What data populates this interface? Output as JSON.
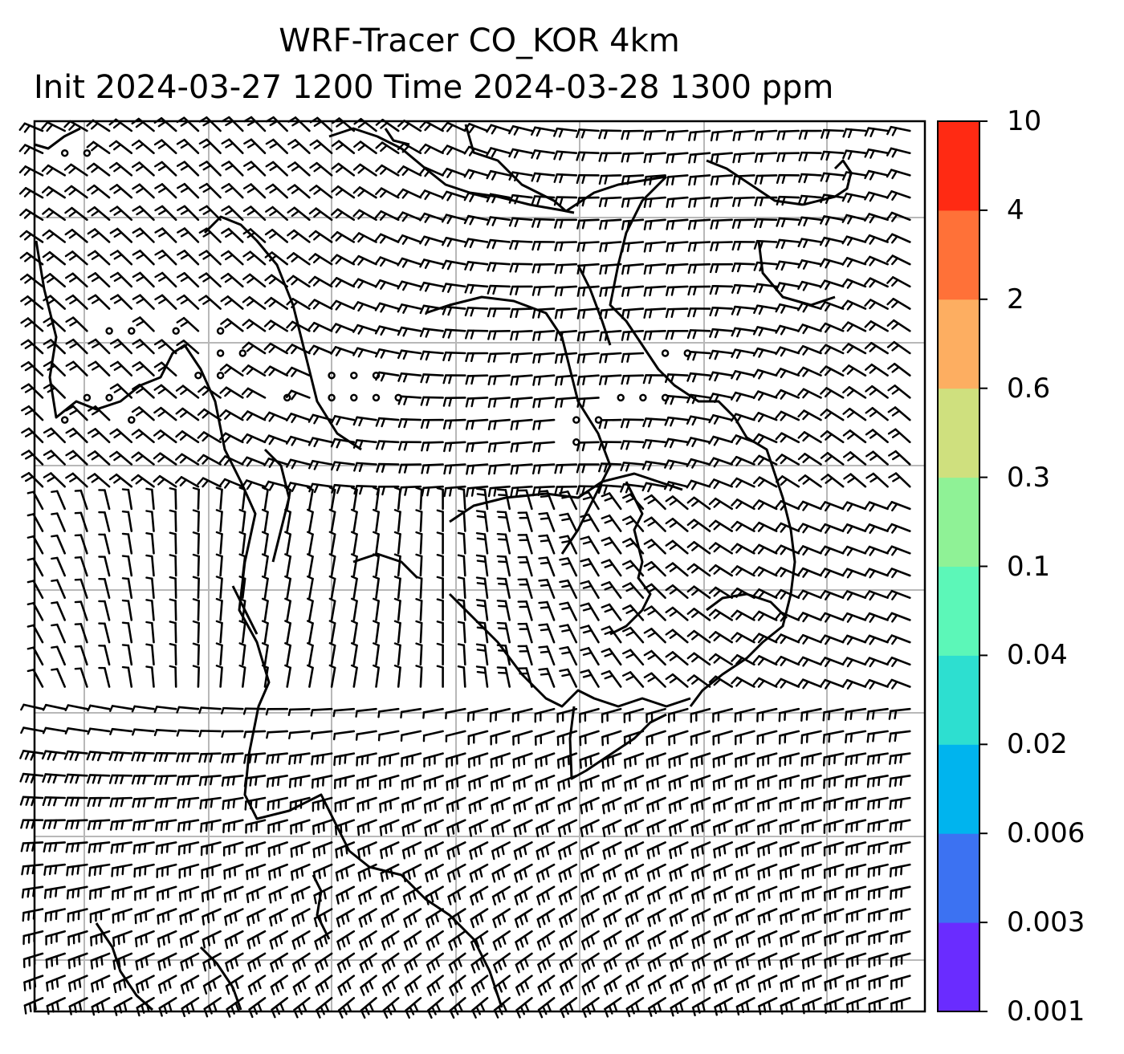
{
  "title": {
    "line1": "WRF-Tracer CO_KOR 4km",
    "line2": "Init 2024-03-27 1200 Time 2024-03-28 1300 ppm"
  },
  "colorbar": {
    "ticks": [
      "0.001",
      "0.003",
      "0.006",
      "0.02",
      "0.04",
      "0.1",
      "0.3",
      "0.6",
      "2",
      "4",
      "10"
    ],
    "colors": [
      "#6a2cff",
      "#3c72f2",
      "#00b4ee",
      "#2ddfd0",
      "#5cf7b8",
      "#8ff296",
      "#cfe07e",
      "#fdae61",
      "#ff7138",
      "#ff2a13"
    ]
  },
  "map_style": {
    "coastline_color": "#000000",
    "grid_color": "#b8b8b8",
    "barb_color": "#000000"
  }
}
